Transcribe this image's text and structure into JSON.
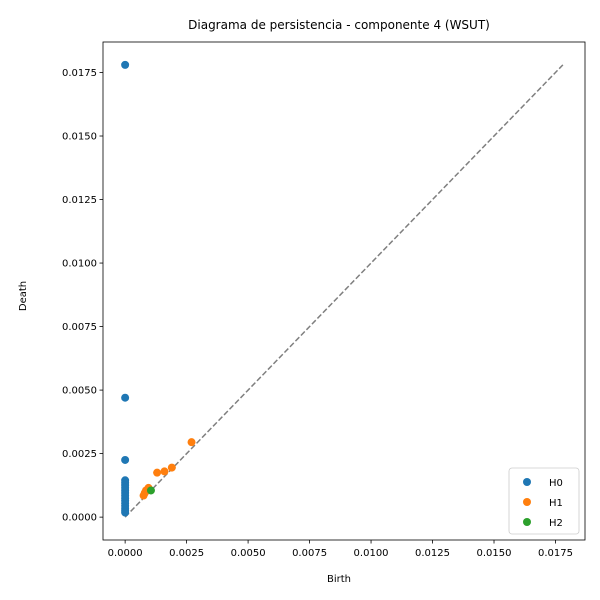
{
  "chart_data": {
    "type": "scatter",
    "title": "Diagrama de persistencia - componente 4 (WSUT)",
    "xlabel": "Birth",
    "ylabel": "Death",
    "xlim": [
      -0.0009,
      0.0187
    ],
    "ylim": [
      -0.0009,
      0.0187
    ],
    "x_ticks": [
      0.0,
      0.0025,
      0.005,
      0.0075,
      0.01,
      0.0125,
      0.015,
      0.0175
    ],
    "x_tick_labels": [
      "0.0000",
      "0.0025",
      "0.0050",
      "0.0075",
      "0.0100",
      "0.0125",
      "0.0150",
      "0.0175"
    ],
    "y_ticks": [
      0.0,
      0.0025,
      0.005,
      0.0075,
      0.01,
      0.0125,
      0.015,
      0.0175
    ],
    "y_tick_labels": [
      "0.0000",
      "0.0025",
      "0.0050",
      "0.0075",
      "0.0100",
      "0.0125",
      "0.0150",
      "0.0175"
    ],
    "diagonal": {
      "from": 0.0,
      "to": 0.0178,
      "color": "#7f7f7f",
      "style": "dashed"
    },
    "grid": false,
    "legend_position": "bottom-right",
    "series": [
      {
        "name": "H0",
        "color": "#1f77b4",
        "points": [
          [
            0,
            0.0178
          ],
          [
            0,
            0.0047
          ],
          [
            0,
            0.00225
          ],
          [
            0,
            0.00145
          ],
          [
            0,
            0.00135
          ],
          [
            0,
            0.00125
          ],
          [
            0,
            0.00115
          ],
          [
            0,
            0.00105
          ],
          [
            0,
            0.00095
          ],
          [
            0,
            0.00085
          ],
          [
            0,
            0.00075
          ],
          [
            0,
            0.00065
          ],
          [
            0,
            0.00055
          ],
          [
            0,
            0.00045
          ],
          [
            0,
            0.00035
          ],
          [
            0,
            0.00025
          ],
          [
            0,
            0.00018
          ]
        ]
      },
      {
        "name": "H1",
        "color": "#ff7f0e",
        "points": [
          [
            0.0027,
            0.00295
          ],
          [
            0.0019,
            0.00195
          ],
          [
            0.0016,
            0.0018
          ],
          [
            0.0013,
            0.00175
          ],
          [
            0.00095,
            0.00115
          ],
          [
            0.00085,
            0.00105
          ],
          [
            0.0008,
            0.00095
          ],
          [
            0.00075,
            0.00085
          ]
        ]
      },
      {
        "name": "H2",
        "color": "#2ca02c",
        "points": [
          [
            0.00105,
            0.00105
          ]
        ]
      }
    ]
  }
}
